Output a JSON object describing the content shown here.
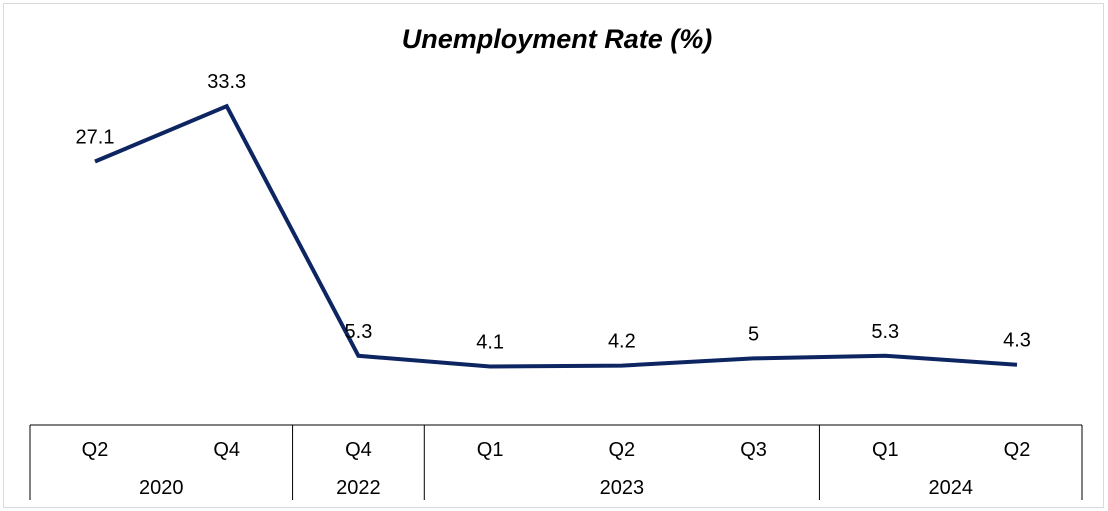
{
  "chart_data": {
    "type": "line",
    "title": "Unemployment Rate (%)",
    "xlabel": "",
    "ylabel": "",
    "categories": [
      {
        "quarter": "Q2",
        "year": "2020"
      },
      {
        "quarter": "Q4",
        "year": "2020"
      },
      {
        "quarter": "Q4",
        "year": "2022"
      },
      {
        "quarter": "Q1",
        "year": "2023"
      },
      {
        "quarter": "Q2",
        "year": "2023"
      },
      {
        "quarter": "Q3",
        "year": "2023"
      },
      {
        "quarter": "Q1",
        "year": "2024"
      },
      {
        "quarter": "Q2",
        "year": "2024"
      }
    ],
    "year_groups": [
      {
        "label": "2020",
        "count": 2
      },
      {
        "label": "2022",
        "count": 1
      },
      {
        "label": "2023",
        "count": 3
      },
      {
        "label": "2024",
        "count": 2
      }
    ],
    "series": [
      {
        "values": [
          27.1,
          33.3,
          5.3,
          4.1,
          4.2,
          5,
          5.3,
          4.3
        ],
        "labels": [
          "27.1",
          "33.3",
          "5.3",
          "4.1",
          "4.2",
          "5",
          "5.3",
          "4.3"
        ],
        "color": "#0d2561"
      }
    ],
    "ylim": [
      0,
      35
    ],
    "grid": false,
    "legend": "none"
  }
}
